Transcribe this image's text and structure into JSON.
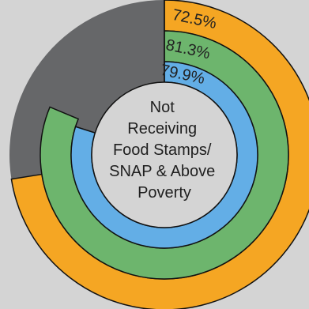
{
  "chart_data": {
    "type": "pie",
    "center_label": [
      "Not",
      "Receiving",
      "Food Stamps/",
      "SNAP & Above",
      "Poverty"
    ],
    "series": [
      {
        "label": "72.5%",
        "value": 72.5,
        "color": "#f5a623"
      },
      {
        "label": "81.3%",
        "value": 81.3,
        "color": "#6db56d"
      },
      {
        "label": "79.9%",
        "value": 79.9,
        "color": "#63aee6"
      }
    ],
    "remainder_color": "#666769",
    "background_color": "#d4d4d4",
    "center_fill": "#d4d4d4"
  }
}
